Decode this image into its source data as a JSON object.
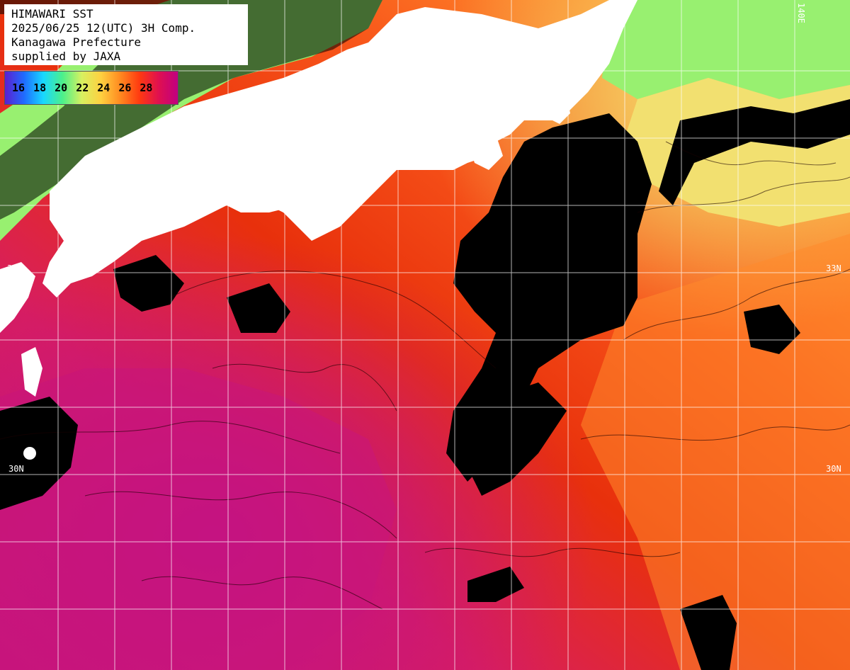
{
  "header": {
    "line1": "HIMAWARI SST",
    "line2": "2025/06/25 12(UTC) 3H Comp.",
    "line3": "Kanagawa Prefecture",
    "line4": "supplied by JAXA"
  },
  "legend": {
    "ticks": [
      "16",
      "18",
      "20",
      "22",
      "24",
      "26",
      "28"
    ],
    "stops": [
      "#5b1fd0",
      "#1f6cff",
      "#18d8ff",
      "#4cf08a",
      "#d8f060",
      "#ffd040",
      "#ff8a20",
      "#ff3a10",
      "#e01050",
      "#c00080"
    ]
  },
  "grid": {
    "lat_labels": {
      "north_33": "33N",
      "north_30": "30N"
    },
    "lon_label": "140E"
  },
  "colors": {
    "land": "#ffffff",
    "cloud": "#000000",
    "warm_magenta": "#c8157a",
    "red": "#e8300c",
    "orange": "#ff7a1c",
    "light_orange": "#ffb24a",
    "yellow": "#f2e070",
    "green": "#98f070",
    "grid": "#ffffff"
  }
}
